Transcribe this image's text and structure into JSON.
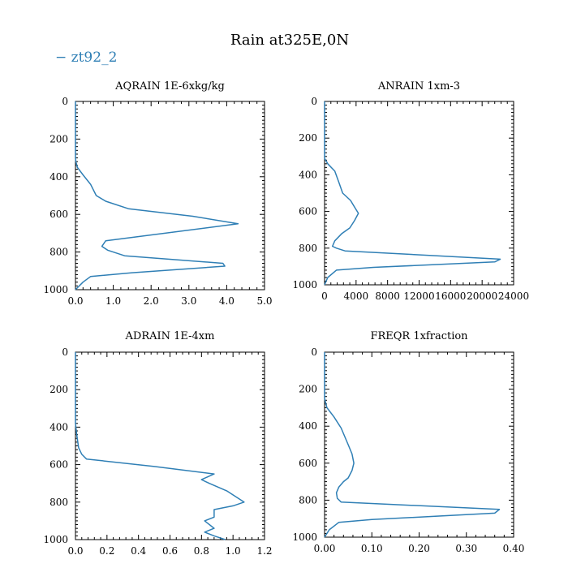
{
  "figure": {
    "title": "Rain at325E,0N",
    "legend": [
      {
        "name": "zt92_2",
        "color": "#2f7fb5"
      }
    ],
    "legend_placement": "top-left"
  },
  "chart_data": [
    {
      "type": "line",
      "title": "AQRAIN  1E-6xkg/kg",
      "xlim": [
        0,
        5
      ],
      "ylim": [
        1000,
        0
      ],
      "y_inverted": true,
      "x_ticks": [
        "0.0",
        "1.0",
        "2.0",
        "3.0",
        "4.0",
        "5.0"
      ],
      "x_tick_values": [
        0,
        1,
        2,
        3,
        4,
        5
      ],
      "y_ticks": [
        "0",
        "200",
        "400",
        "600",
        "800",
        "1000"
      ],
      "y_tick_values": [
        0,
        200,
        400,
        600,
        800,
        1000
      ],
      "series": [
        {
          "name": "zt92_2",
          "color": "#2f7fb5",
          "x": [
            0,
            0,
            0.01,
            0.05,
            0.2,
            0.4,
            0.55,
            0.8,
            1.4,
            3.1,
            4.3,
            0.8,
            0.7,
            0.85,
            1.3,
            3.9,
            3.95,
            1.5,
            0.4,
            0.2,
            0
          ],
          "y": [
            0,
            300,
            320,
            350,
            390,
            440,
            500,
            530,
            570,
            610,
            650,
            740,
            770,
            790,
            820,
            860,
            875,
            910,
            930,
            960,
            1000
          ]
        }
      ]
    },
    {
      "type": "line",
      "title": "ANRAIN  1xm-3",
      "xlim": [
        0,
        24000
      ],
      "ylim": [
        1000,
        0
      ],
      "y_inverted": true,
      "x_ticks": [
        "0",
        "4000",
        "8000",
        "12000",
        "16000",
        "20000",
        "24000"
      ],
      "x_tick_values": [
        0,
        4000,
        8000,
        12000,
        16000,
        20000,
        24000
      ],
      "y_ticks": [
        "0",
        "200",
        "400",
        "600",
        "800",
        "1000"
      ],
      "y_tick_values": [
        0,
        200,
        400,
        600,
        800,
        1000
      ],
      "series": [
        {
          "name": "zt92_2",
          "color": "#2f7fb5",
          "x": [
            0,
            0,
            400,
            1300,
            1800,
            2300,
            3300,
            4000,
            4300,
            3800,
            3200,
            2200,
            1300,
            1000,
            1500,
            2600,
            22300,
            21600,
            6200,
            1500,
            400,
            0
          ],
          "y": [
            0,
            310,
            340,
            380,
            440,
            500,
            540,
            590,
            610,
            650,
            690,
            720,
            760,
            790,
            800,
            815,
            860,
            875,
            905,
            920,
            960,
            1000
          ]
        }
      ]
    },
    {
      "type": "line",
      "title": "ADRAIN  1E-4xm",
      "xlim": [
        0,
        1.2
      ],
      "ylim": [
        1000,
        0
      ],
      "y_inverted": true,
      "x_ticks": [
        "0.0",
        "0.2",
        "0.4",
        "0.6",
        "0.8",
        "1.0",
        "1.2"
      ],
      "x_tick_values": [
        0,
        0.2,
        0.4,
        0.6,
        0.8,
        1.0,
        1.2
      ],
      "y_ticks": [
        "0",
        "200",
        "400",
        "600",
        "800",
        "1000"
      ],
      "y_tick_values": [
        0,
        200,
        400,
        600,
        800,
        1000
      ],
      "series": [
        {
          "name": "zt92_2",
          "color": "#2f7fb5",
          "x": [
            0,
            0,
            0.01,
            0.02,
            0.04,
            0.07,
            0.5,
            0.88,
            0.8,
            0.85,
            0.96,
            1.07,
            1.0,
            0.88,
            0.88,
            0.82,
            0.88,
            0.82,
            0.88,
            0.95
          ],
          "y": [
            0,
            380,
            450,
            510,
            545,
            570,
            610,
            650,
            680,
            700,
            740,
            800,
            820,
            840,
            880,
            900,
            940,
            960,
            980,
            1000
          ]
        }
      ]
    },
    {
      "type": "line",
      "title": "FREQR  1xfraction",
      "xlim": [
        0,
        0.4
      ],
      "ylim": [
        1000,
        0
      ],
      "y_inverted": true,
      "x_ticks": [
        "0.00",
        "0.10",
        "0.20",
        "0.30",
        "0.40"
      ],
      "x_tick_values": [
        0,
        0.1,
        0.2,
        0.3,
        0.4
      ],
      "y_ticks": [
        "0",
        "200",
        "400",
        "600",
        "800",
        "1000"
      ],
      "y_tick_values": [
        0,
        200,
        400,
        600,
        800,
        1000
      ],
      "series": [
        {
          "name": "zt92_2",
          "color": "#2f7fb5",
          "x": [
            0,
            0,
            0.005,
            0.02,
            0.035,
            0.05,
            0.058,
            0.062,
            0.058,
            0.05,
            0.04,
            0.03,
            0.025,
            0.027,
            0.035,
            0.37,
            0.36,
            0.1,
            0.03,
            0.01,
            0
          ],
          "y": [
            0,
            250,
            300,
            350,
            410,
            500,
            550,
            600,
            640,
            680,
            700,
            730,
            760,
            790,
            810,
            850,
            870,
            905,
            920,
            960,
            1000
          ]
        }
      ]
    }
  ]
}
